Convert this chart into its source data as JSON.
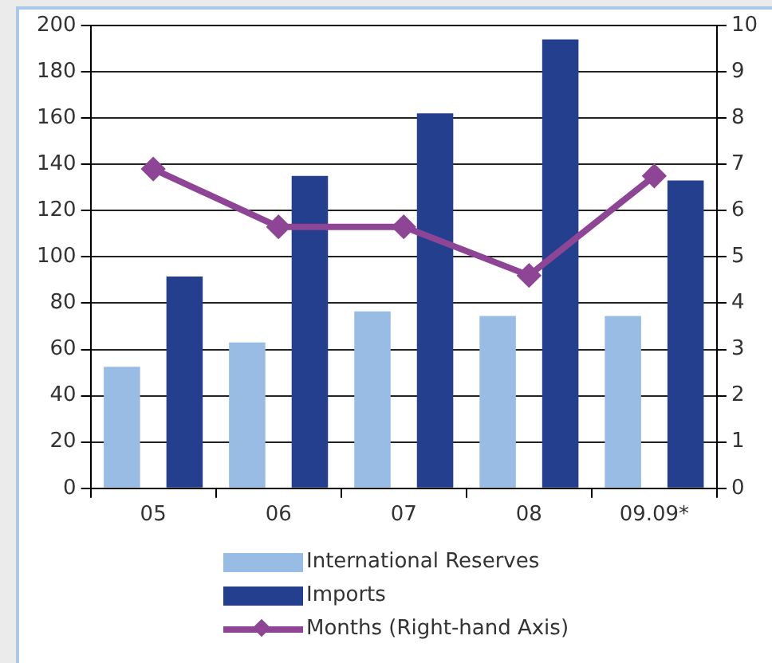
{
  "chart_data": {
    "type": "bar",
    "categories": [
      "05",
      "06",
      "07",
      "08",
      "09.09*"
    ],
    "series": [
      {
        "name": "International Reserves",
        "color": "#98bce4",
        "values": [
          52.5,
          63,
          76.5,
          74.5,
          74.5
        ]
      },
      {
        "name": "Imports",
        "color": "#253f8f",
        "values": [
          91.5,
          135,
          162,
          194,
          133
        ]
      },
      {
        "name": "Months (Right-hand Axis)",
        "type": "line",
        "axis": "y2",
        "color": "#8e4595",
        "marker": "diamond",
        "values": [
          6.9,
          5.65,
          5.65,
          4.6,
          6.75
        ]
      }
    ],
    "ylim": [
      0,
      200
    ],
    "yticks": [
      0,
      20,
      40,
      60,
      80,
      100,
      120,
      140,
      160,
      180,
      200
    ],
    "y2lim": [
      0,
      10
    ],
    "y2ticks": [
      0,
      1,
      2,
      3,
      4,
      5,
      6,
      7,
      8,
      9,
      10
    ],
    "grid": "y",
    "legend": "bottom"
  }
}
